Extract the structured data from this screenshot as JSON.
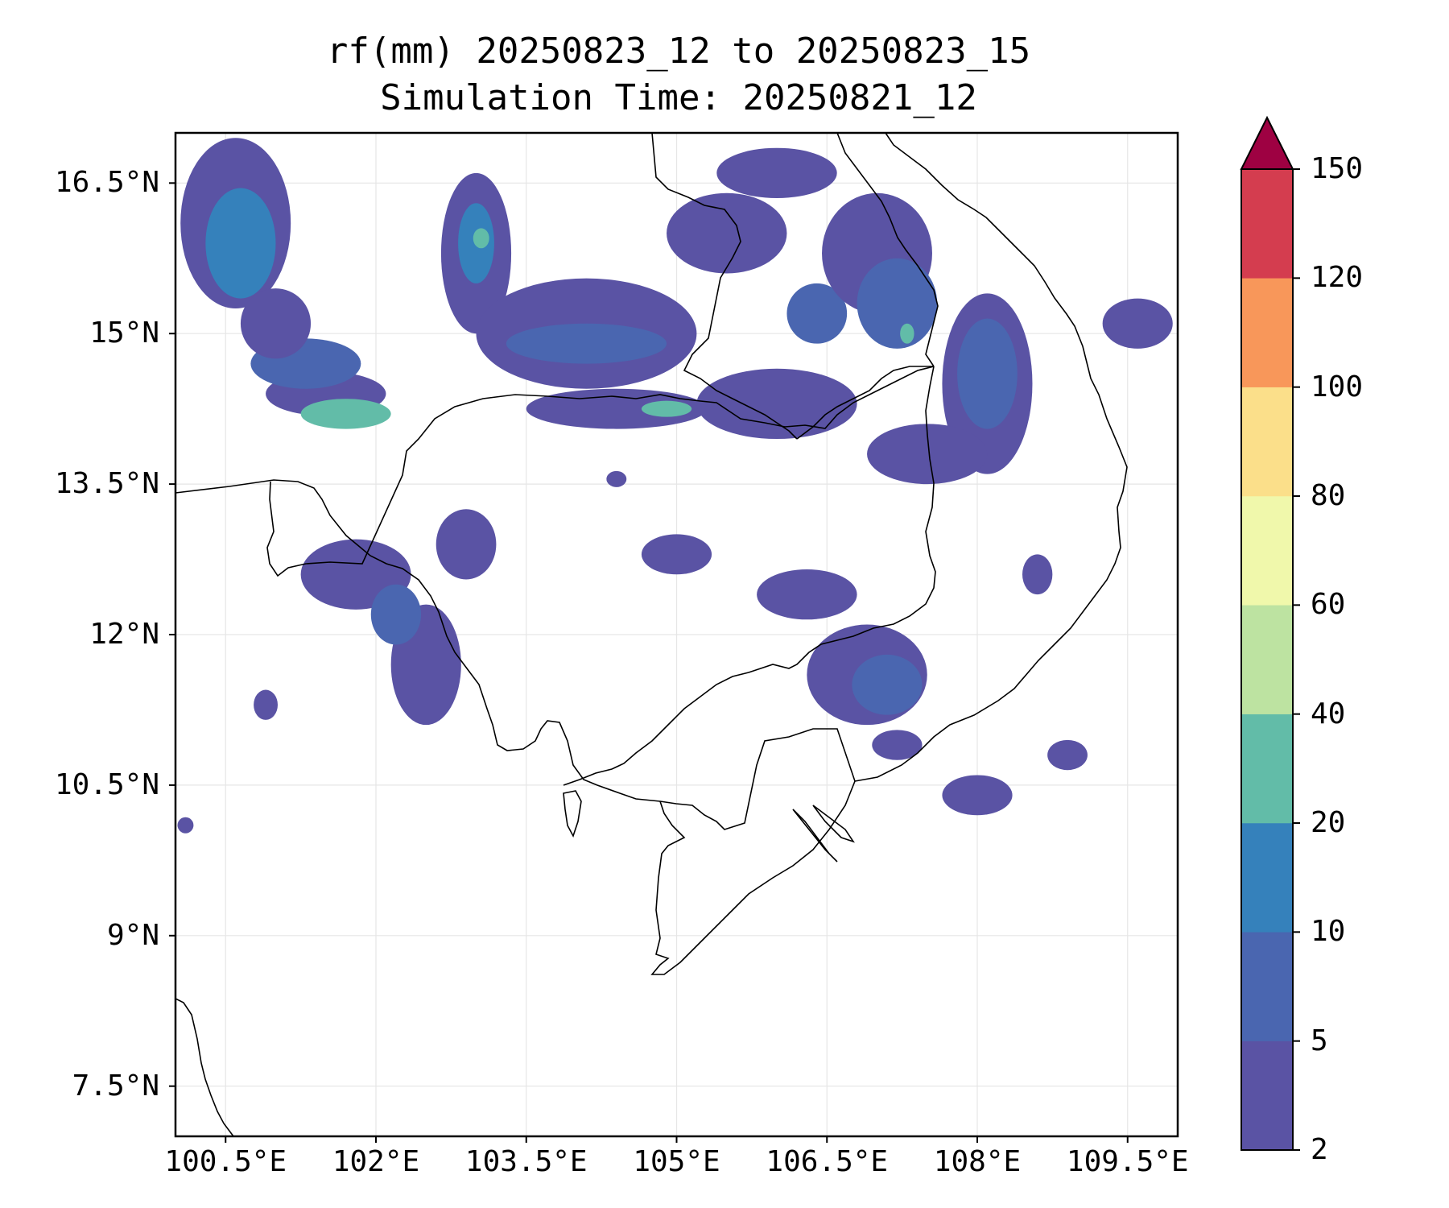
{
  "title": {
    "line1": "rf(mm) 20250823_12 to 20250823_15",
    "line2": "Simulation Time: 20250821_12"
  },
  "map": {
    "lon_range": [
      100.0,
      110.0
    ],
    "lat_range": [
      7.0,
      17.0
    ],
    "lat_ticks": [
      {
        "value": 16.5,
        "label": "16.5°N"
      },
      {
        "value": 15.0,
        "label": "15°N"
      },
      {
        "value": 13.5,
        "label": "13.5°N"
      },
      {
        "value": 12.0,
        "label": "12°N"
      },
      {
        "value": 10.5,
        "label": "10.5°N"
      },
      {
        "value": 9.0,
        "label": "9°N"
      },
      {
        "value": 7.5,
        "label": "7.5°N"
      }
    ],
    "lon_ticks": [
      {
        "value": 100.5,
        "label": "100.5°E"
      },
      {
        "value": 102.0,
        "label": "102°E"
      },
      {
        "value": 103.5,
        "label": "103.5°E"
      },
      {
        "value": 105.0,
        "label": "105°E"
      },
      {
        "value": 106.5,
        "label": "106.5°E"
      },
      {
        "value": 108.0,
        "label": "108°E"
      },
      {
        "value": 109.5,
        "label": "109.5°E"
      }
    ],
    "gridlines": true
  },
  "colorbar": {
    "levels": [
      {
        "value": 2,
        "label": "2"
      },
      {
        "value": 5,
        "label": "5"
      },
      {
        "value": 10,
        "label": "10"
      },
      {
        "value": 20,
        "label": "20"
      },
      {
        "value": 40,
        "label": "40"
      },
      {
        "value": 60,
        "label": "60"
      },
      {
        "value": 80,
        "label": "80"
      },
      {
        "value": 100,
        "label": "100"
      },
      {
        "value": 120,
        "label": "120"
      },
      {
        "value": 150,
        "label": "150"
      }
    ],
    "colors": [
      "#5a53a4",
      "#4a66b0",
      "#3581bb",
      "#62bca8",
      "#bde3a1",
      "#f0f8ab",
      "#fbdf8a",
      "#f8975a",
      "#d43d4f"
    ],
    "extend_color": "#9e0142"
  },
  "rain_field": {
    "colors": {
      "light": "#5a53a4",
      "moderate": "#3581bb",
      "heavy": "#62bca8",
      "peak": "#bde3a1"
    },
    "blobs": [
      {
        "lon": 100.6,
        "lat": 16.1,
        "rlon": 0.55,
        "rlat": 0.85,
        "bin": 0
      },
      {
        "lon": 100.65,
        "lat": 15.9,
        "rlon": 0.35,
        "rlat": 0.55,
        "bin": 2
      },
      {
        "lon": 101.5,
        "lat": 14.4,
        "rlon": 0.6,
        "rlat": 0.22,
        "bin": 0
      },
      {
        "lon": 101.3,
        "lat": 14.7,
        "rlon": 0.55,
        "rlat": 0.25,
        "bin": 1
      },
      {
        "lon": 101.7,
        "lat": 14.2,
        "rlon": 0.45,
        "rlat": 0.15,
        "bin": 3
      },
      {
        "lon": 101.0,
        "lat": 15.1,
        "rlon": 0.35,
        "rlat": 0.35,
        "bin": 0
      },
      {
        "lon": 103.0,
        "lat": 15.8,
        "rlon": 0.35,
        "rlat": 0.8,
        "bin": 0
      },
      {
        "lon": 103.0,
        "lat": 15.9,
        "rlon": 0.18,
        "rlat": 0.4,
        "bin": 2
      },
      {
        "lon": 103.05,
        "lat": 15.95,
        "rlon": 0.08,
        "rlat": 0.1,
        "bin": 3
      },
      {
        "lon": 104.1,
        "lat": 15.0,
        "rlon": 1.1,
        "rlat": 0.55,
        "bin": 0
      },
      {
        "lon": 104.1,
        "lat": 14.9,
        "rlon": 0.8,
        "rlat": 0.2,
        "bin": 1
      },
      {
        "lon": 104.4,
        "lat": 14.25,
        "rlon": 0.9,
        "rlat": 0.2,
        "bin": 0
      },
      {
        "lon": 104.9,
        "lat": 14.25,
        "rlon": 0.25,
        "rlat": 0.08,
        "bin": 3
      },
      {
        "lon": 105.5,
        "lat": 16.0,
        "rlon": 0.6,
        "rlat": 0.4,
        "bin": 0
      },
      {
        "lon": 106.0,
        "lat": 16.6,
        "rlon": 0.6,
        "rlat": 0.25,
        "bin": 0
      },
      {
        "lon": 106.0,
        "lat": 14.3,
        "rlon": 0.8,
        "rlat": 0.35,
        "bin": 0
      },
      {
        "lon": 106.4,
        "lat": 15.2,
        "rlon": 0.3,
        "rlat": 0.3,
        "bin": 1
      },
      {
        "lon": 107.0,
        "lat": 15.8,
        "rlon": 0.55,
        "rlat": 0.6,
        "bin": 0
      },
      {
        "lon": 107.2,
        "lat": 15.3,
        "rlon": 0.4,
        "rlat": 0.45,
        "bin": 1
      },
      {
        "lon": 107.3,
        "lat": 15.0,
        "rlon": 0.07,
        "rlat": 0.1,
        "bin": 3
      },
      {
        "lon": 108.1,
        "lat": 14.5,
        "rlon": 0.45,
        "rlat": 0.9,
        "bin": 0
      },
      {
        "lon": 108.1,
        "lat": 14.6,
        "rlon": 0.3,
        "rlat": 0.55,
        "bin": 1
      },
      {
        "lon": 107.5,
        "lat": 13.8,
        "rlon": 0.6,
        "rlat": 0.3,
        "bin": 0
      },
      {
        "lon": 109.6,
        "lat": 15.1,
        "rlon": 0.35,
        "rlat": 0.25,
        "bin": 0
      },
      {
        "lon": 101.8,
        "lat": 12.6,
        "rlon": 0.55,
        "rlat": 0.35,
        "bin": 0
      },
      {
        "lon": 102.5,
        "lat": 11.7,
        "rlon": 0.35,
        "rlat": 0.6,
        "bin": 0
      },
      {
        "lon": 102.2,
        "lat": 12.2,
        "rlon": 0.25,
        "rlat": 0.3,
        "bin": 1
      },
      {
        "lon": 102.9,
        "lat": 12.9,
        "rlon": 0.3,
        "rlat": 0.35,
        "bin": 0
      },
      {
        "lon": 100.9,
        "lat": 11.3,
        "rlon": 0.12,
        "rlat": 0.15,
        "bin": 0
      },
      {
        "lon": 100.1,
        "lat": 10.1,
        "rlon": 0.08,
        "rlat": 0.08,
        "bin": 0
      },
      {
        "lon": 105.0,
        "lat": 12.8,
        "rlon": 0.35,
        "rlat": 0.2,
        "bin": 0
      },
      {
        "lon": 106.9,
        "lat": 11.6,
        "rlon": 0.6,
        "rlat": 0.5,
        "bin": 0
      },
      {
        "lon": 107.1,
        "lat": 11.5,
        "rlon": 0.35,
        "rlat": 0.3,
        "bin": 1
      },
      {
        "lon": 106.3,
        "lat": 12.4,
        "rlon": 0.5,
        "rlat": 0.25,
        "bin": 0
      },
      {
        "lon": 107.2,
        "lat": 10.9,
        "rlon": 0.25,
        "rlat": 0.15,
        "bin": 0
      },
      {
        "lon": 108.0,
        "lat": 10.4,
        "rlon": 0.35,
        "rlat": 0.2,
        "bin": 0
      },
      {
        "lon": 108.9,
        "lat": 10.8,
        "rlon": 0.2,
        "rlat": 0.15,
        "bin": 0
      },
      {
        "lon": 108.6,
        "lat": 12.6,
        "rlon": 0.15,
        "rlat": 0.2,
        "bin": 0
      },
      {
        "lon": 104.4,
        "lat": 13.55,
        "rlon": 0.1,
        "rlat": 0.08,
        "bin": 0
      }
    ]
  }
}
